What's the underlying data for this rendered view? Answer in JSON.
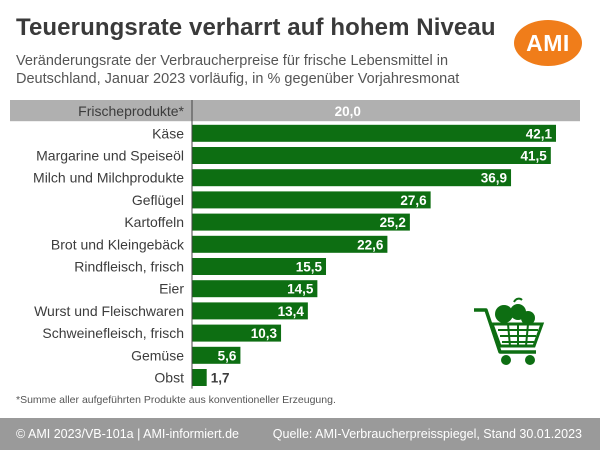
{
  "header": {
    "title": "Teuerungsrate verharrt auf hohem Niveau",
    "subtitle": "Veränderungsrate der Verbraucherpreise für frische Lebensmittel in Deutschland, Januar 2023 vorläufig, in % gegenüber Vorjahresmonat",
    "logo_text": "AMI"
  },
  "chart_data": {
    "type": "bar",
    "orientation": "horizontal",
    "categories": [
      "Frischeprodukte*",
      "Käse",
      "Margarine und Speiseöl",
      "Milch und Milchprodukte",
      "Geflügel",
      "Kartoffeln",
      "Brot und Kleingebäck",
      "Rindfleisch, frisch",
      "Eier",
      "Wurst und Fleischwaren",
      "Schweinefleisch, frisch",
      "Gemüse",
      "Obst"
    ],
    "values": [
      20.0,
      42.1,
      41.5,
      36.9,
      27.6,
      25.2,
      22.6,
      15.5,
      14.5,
      13.4,
      10.3,
      5.6,
      1.7
    ],
    "value_labels": [
      "20,0",
      "42,1",
      "41,5",
      "36,9",
      "27,6",
      "25,2",
      "22,6",
      "15,5",
      "14,5",
      "13,4",
      "10,3",
      "5,6",
      "1,7"
    ],
    "highlight_category": "Frischeprodukte*",
    "xlim": [
      0,
      42.1
    ],
    "grid": false,
    "colors": {
      "bar": "#0d6e12",
      "highlight_bar": "#b0b0b0",
      "highlight_row": "#b0b0b0"
    }
  },
  "footnote": "*Summe aller aufgeführten Produkte aus konventioneller Erzeugung.",
  "footer": {
    "left": "© AMI 2023/VB-101a | AMI-informiert.de",
    "right": "Quelle: AMI-Verbraucherpreisspiegel, Stand 30.01.2023"
  },
  "decor": {
    "cart_icon": "shopping-cart-with-vegetables-icon"
  }
}
